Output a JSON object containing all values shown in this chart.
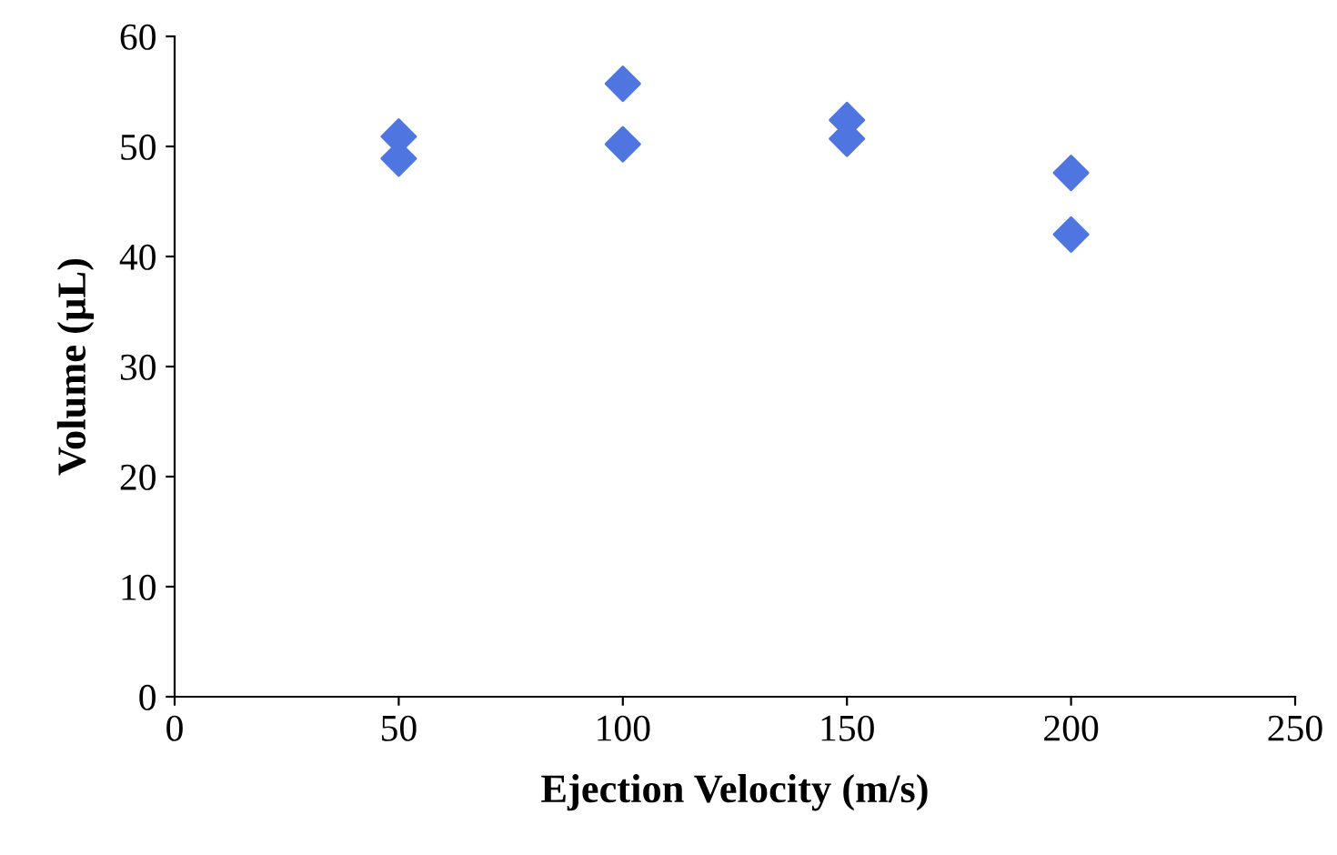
{
  "chart_data": {
    "type": "scatter",
    "xlabel": "Ejection Velocity (m/s)",
    "ylabel": "Volume (µL)",
    "x": [
      50,
      50,
      100,
      100,
      150,
      150,
      200,
      200
    ],
    "series": [
      {
        "color": "#4f76e0",
        "values": [
          50.9,
          48.9,
          55.7,
          50.2,
          52.4,
          50.7,
          47.6,
          42.0
        ]
      }
    ],
    "xlim": [
      0,
      250
    ],
    "xticks": [
      0,
      50,
      100,
      150,
      200,
      250
    ],
    "ylim": [
      0,
      60
    ],
    "yticks": [
      0,
      10,
      20,
      30,
      40,
      50,
      60
    ],
    "marker": "diamond",
    "grid": false,
    "legend": false
  }
}
